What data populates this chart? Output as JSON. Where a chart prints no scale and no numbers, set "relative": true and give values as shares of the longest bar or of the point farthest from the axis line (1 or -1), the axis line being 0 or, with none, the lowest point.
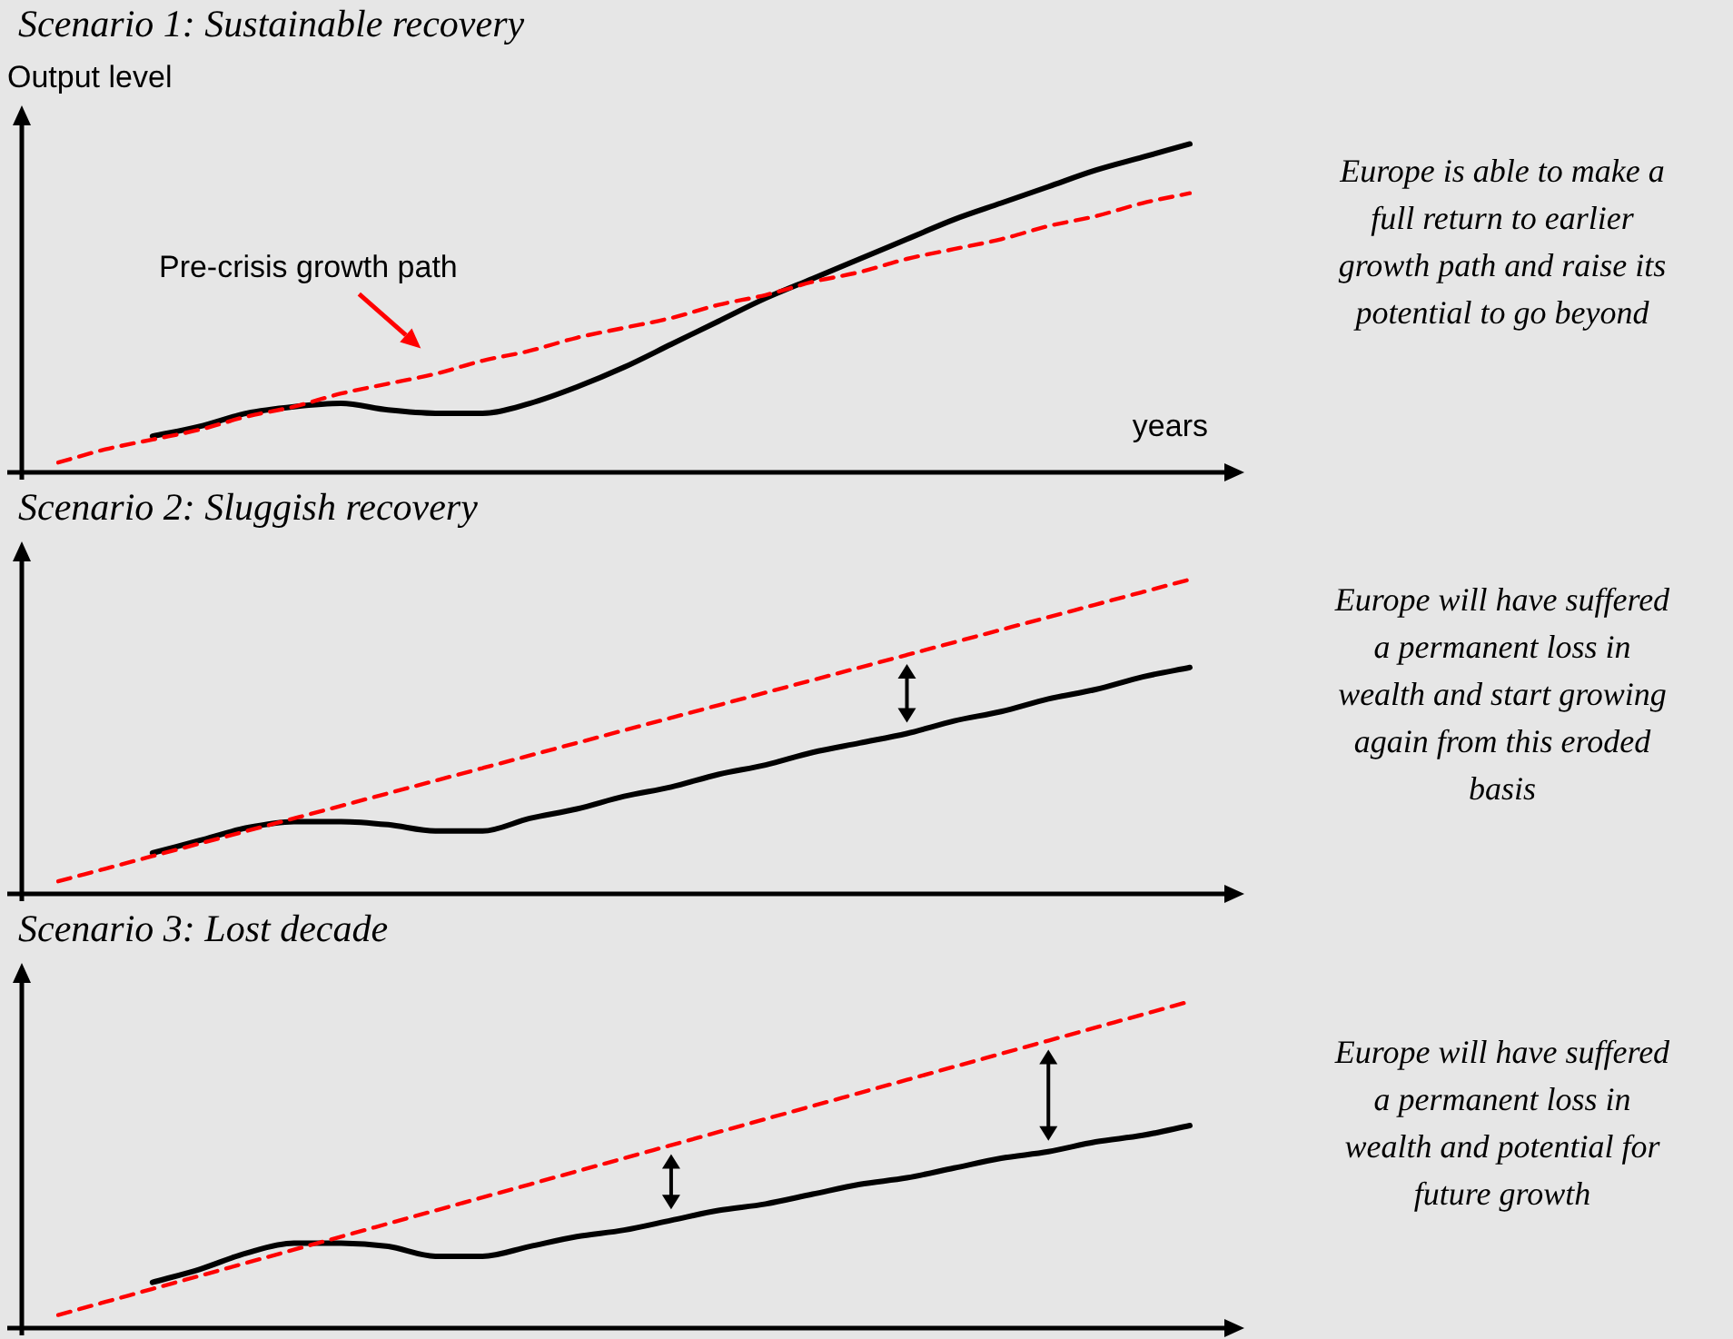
{
  "chart_data": [
    {
      "type": "line",
      "relative": true,
      "title": "Scenario 1: Sustainable recovery",
      "ylabel": "Output level",
      "xlabel": "years",
      "categories": [
        null,
        null,
        null,
        null,
        null,
        null,
        null,
        null,
        null,
        null,
        null,
        null,
        null,
        null,
        null,
        null,
        null,
        null,
        null,
        null,
        null,
        null,
        null,
        null,
        null
      ],
      "series": [
        {
          "name": "Pre-crisis growth path",
          "color": "#ff0000",
          "line_style": "dashed",
          "values": [
            0.03,
            0.07,
            0.1,
            0.13,
            0.17,
            0.2,
            0.24,
            0.27,
            0.3,
            0.34,
            0.37,
            0.41,
            0.44,
            0.47,
            0.51,
            0.54,
            0.58,
            0.61,
            0.65,
            0.68,
            0.71,
            0.75,
            0.78,
            0.82,
            0.85
          ]
        },
        {
          "color": "#000000",
          "line_style": "solid",
          "values": [
            null,
            null,
            0.11,
            0.14,
            0.18,
            0.2,
            0.21,
            0.19,
            0.18,
            0.18,
            0.21,
            0.26,
            0.32,
            0.39,
            0.46,
            0.53,
            0.59,
            0.65,
            0.71,
            0.77,
            0.82,
            0.87,
            0.92,
            0.96,
            1
          ]
        }
      ],
      "annotations": [
        "Europe is able to make a full return to earlier growth path and raise its potential to go beyond"
      ]
    },
    {
      "type": "line",
      "relative": true,
      "title": "Scenario 2: Sluggish recovery",
      "categories": [
        null,
        null,
        null,
        null,
        null,
        null,
        null,
        null,
        null,
        null,
        null,
        null,
        null,
        null,
        null,
        null,
        null,
        null,
        null,
        null,
        null,
        null,
        null,
        null,
        null
      ],
      "series": [
        {
          "color": "#ff0000",
          "line_style": "dashed",
          "values": [
            0.04,
            0.08,
            0.12,
            0.16,
            0.2,
            0.24,
            0.28,
            0.32,
            0.36,
            0.4,
            0.44,
            0.48,
            0.52,
            0.56,
            0.6,
            0.64,
            0.68,
            0.72,
            0.76,
            0.8,
            0.84,
            0.88,
            0.92,
            0.96,
            1
          ]
        },
        {
          "color": "#000000",
          "line_style": "solid",
          "values": [
            null,
            null,
            0.13,
            0.17,
            0.21,
            0.23,
            0.23,
            0.22,
            0.2,
            0.2,
            0.24,
            0.27,
            0.31,
            0.34,
            0.38,
            0.41,
            0.45,
            0.48,
            0.51,
            0.55,
            0.58,
            0.62,
            0.65,
            0.69,
            0.72
          ]
        }
      ],
      "annotations": [
        "Europe will have suffered a permanent loss in wealth and start growing again from this eroded basis"
      ]
    },
    {
      "type": "line",
      "relative": true,
      "title": "Scenario 3: Lost decade",
      "categories": [
        null,
        null,
        null,
        null,
        null,
        null,
        null,
        null,
        null,
        null,
        null,
        null,
        null,
        null,
        null,
        null,
        null,
        null,
        null,
        null,
        null,
        null,
        null,
        null,
        null
      ],
      "series": [
        {
          "color": "#ff0000",
          "line_style": "dashed",
          "values": [
            0.04,
            0.08,
            0.12,
            0.16,
            0.2,
            0.24,
            0.28,
            0.32,
            0.36,
            0.4,
            0.44,
            0.48,
            0.52,
            0.56,
            0.6,
            0.64,
            0.68,
            0.72,
            0.76,
            0.8,
            0.84,
            0.88,
            0.92,
            0.96,
            1
          ]
        },
        {
          "color": "#000000",
          "line_style": "solid",
          "values": [
            null,
            null,
            0.14,
            0.18,
            0.23,
            0.26,
            0.26,
            0.25,
            0.22,
            0.22,
            0.25,
            0.28,
            0.3,
            0.33,
            0.36,
            0.38,
            0.41,
            0.44,
            0.46,
            0.49,
            0.52,
            0.54,
            0.57,
            0.59,
            0.62
          ]
        }
      ],
      "annotations": [
        "Europe will have suffered a permanent loss in wealth and potential for future growth"
      ]
    }
  ]
}
